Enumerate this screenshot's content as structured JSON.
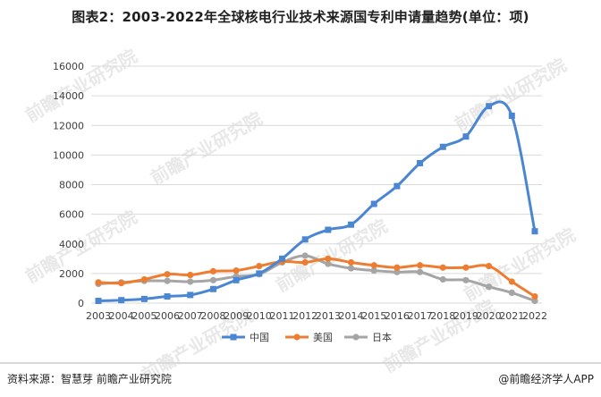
{
  "title": "图表2：2003-2022年全球核电行业技术来源国专利申请量趋势(单位：项)",
  "footer": {
    "source": "资料来源：智慧芽 前瞻产业研究院",
    "brand": "@前瞻经济学人APP"
  },
  "watermark": "前瞻产业研究院",
  "colors": {
    "china": "#4a86d1",
    "usa": "#ed7d31",
    "japan": "#a5a5a5",
    "grid": "#d9d9d9",
    "axis_text": "#404040"
  },
  "chart_data": {
    "type": "line",
    "x": [
      "2003",
      "2004",
      "2005",
      "2006",
      "2007",
      "2008",
      "2009",
      "2010",
      "2011",
      "2012",
      "2013",
      "2014",
      "2015",
      "2016",
      "2017",
      "2018",
      "2019",
      "2020",
      "2021",
      "2022"
    ],
    "ylim": [
      0,
      16000
    ],
    "yticks": [
      0,
      2000,
      4000,
      6000,
      8000,
      10000,
      12000,
      14000,
      16000
    ],
    "grid": true,
    "legend_position": "bottom",
    "series": [
      {
        "name": "中国",
        "marker": "square",
        "color": "#4a86d1",
        "values": [
          150,
          200,
          280,
          450,
          550,
          950,
          1550,
          2000,
          3000,
          4300,
          4950,
          5300,
          6700,
          7900,
          9450,
          10550,
          11250,
          13300,
          12650,
          4850
        ]
      },
      {
        "name": "美国",
        "marker": "circle",
        "color": "#ed7d31",
        "values": [
          1400,
          1350,
          1600,
          1950,
          1900,
          2150,
          2200,
          2500,
          2800,
          2750,
          3000,
          2750,
          2550,
          2400,
          2550,
          2400,
          2400,
          2500,
          1450,
          450
        ]
      },
      {
        "name": "日本",
        "marker": "circle",
        "color": "#a5a5a5",
        "values": [
          1300,
          1400,
          1500,
          1500,
          1450,
          1550,
          1800,
          1950,
          2750,
          3200,
          2650,
          2350,
          2200,
          2100,
          2100,
          1600,
          1550,
          1100,
          700,
          150
        ]
      }
    ]
  }
}
